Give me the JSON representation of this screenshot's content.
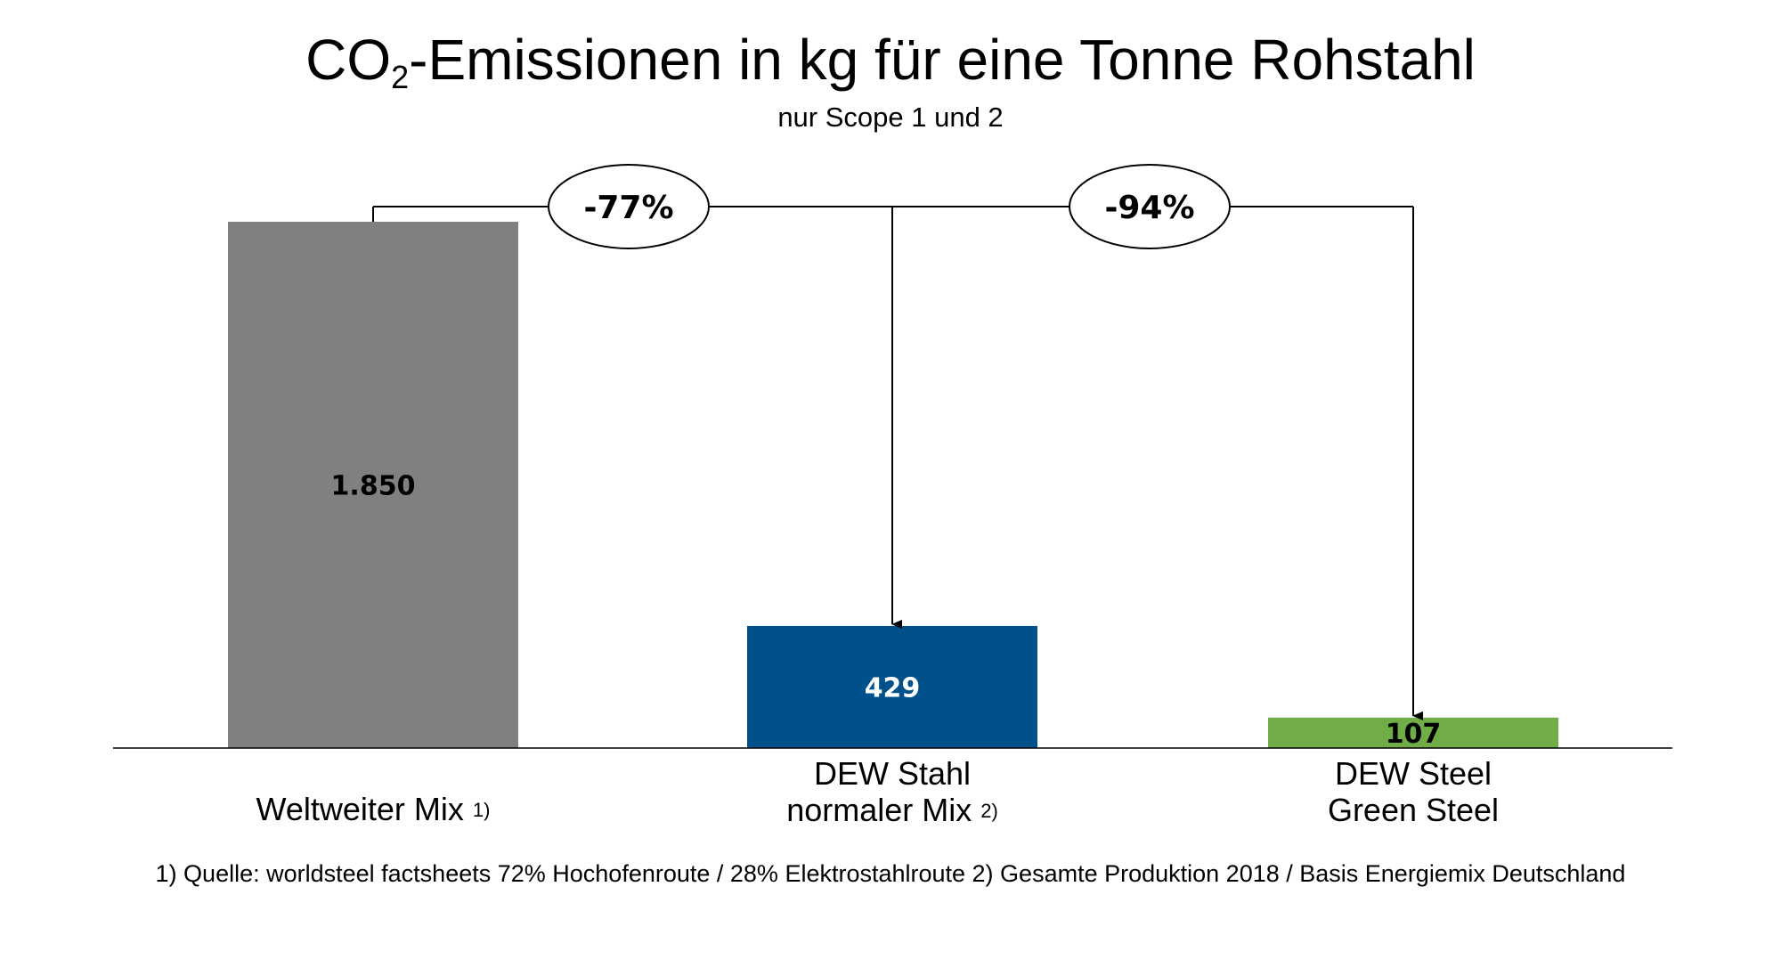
{
  "header": {
    "title_main": "CO",
    "title_sub": "2",
    "title_rest": "-Emissionen in kg für eine Tonne Rohstahl",
    "subtitle": "nur Scope 1 und 2"
  },
  "chart_data": {
    "type": "bar",
    "categories": [
      "Weltweiter Mix",
      "DEW Stahl normaler Mix",
      "DEW Steel Green Steel"
    ],
    "values": [
      1850,
      429,
      107
    ],
    "value_labels": [
      "1.850",
      "429",
      "107"
    ],
    "category_lines": [
      [
        "Weltweiter Mix"
      ],
      [
        "DEW Stahl",
        "normaler Mix"
      ],
      [
        "DEW Steel",
        "Green Steel"
      ]
    ],
    "category_footnote_marks": [
      "1)",
      "2)",
      ""
    ],
    "colors": [
      "#808080",
      "#00508c",
      "#70ad47"
    ],
    "value_label_colors": [
      "#000000",
      "#ffffff",
      "#000000"
    ],
    "ylim": [
      0,
      1850
    ],
    "grid": false,
    "annotations": [
      {
        "label": "-77%",
        "from": 0,
        "to": 1
      },
      {
        "label": "-94%",
        "from": 0,
        "to": 2
      }
    ]
  },
  "footnote": "1) Quelle: worldsteel factsheets 72% Hochofenroute / 28% Elektrostahlroute 2) Gesamte Produktion 2018 / Basis Energiemix Deutschland"
}
